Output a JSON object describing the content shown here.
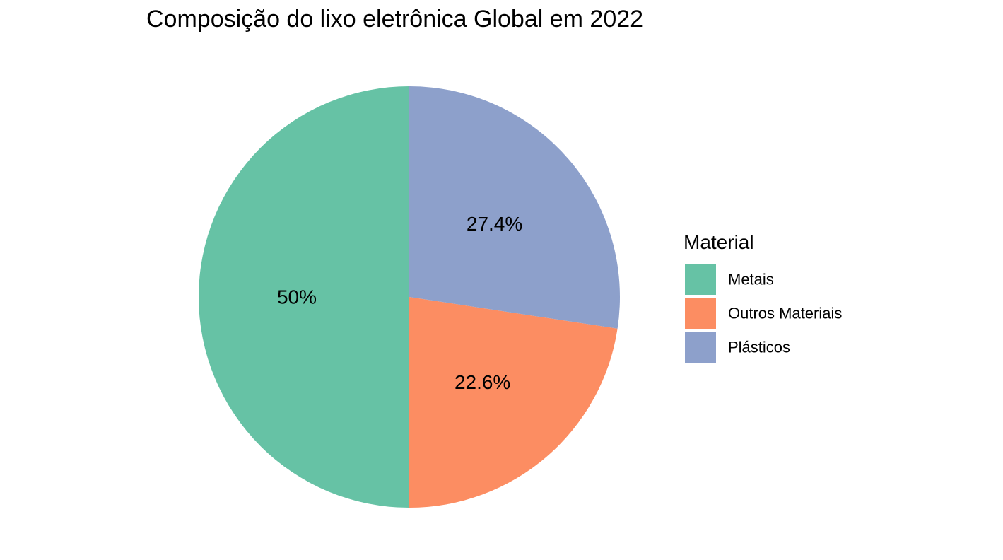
{
  "chart_data": {
    "type": "pie",
    "title": "Composição do lixo eletrônica Global em 2022",
    "legend_title": "Material",
    "legend_position": "right",
    "categories": [
      "Metais",
      "Outros Materiais",
      "Plásticos"
    ],
    "values": [
      50,
      22.6,
      27.4
    ],
    "labels": [
      "50%",
      "22.6%",
      "27.4%"
    ],
    "colors": [
      "#66c2a5",
      "#fc8d62",
      "#8da0cb"
    ],
    "start": "12 o'clock",
    "direction": "counterclockwise"
  }
}
